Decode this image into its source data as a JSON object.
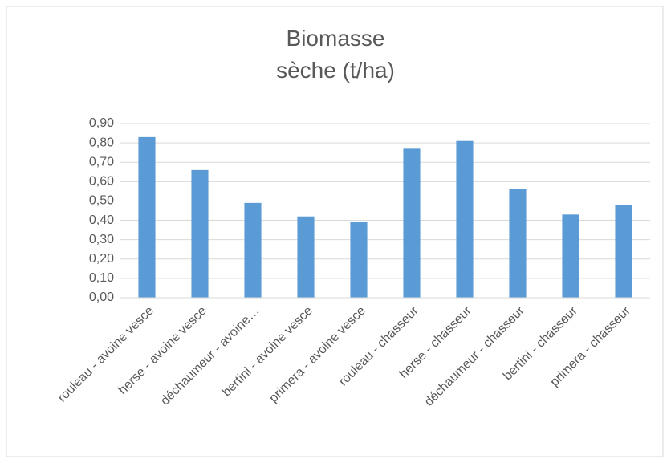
{
  "chart_data": {
    "type": "bar",
    "title": "Biomasse sèche (t/ha)",
    "categories": [
      "rouleau - avoine vesce",
      "herse - avoine vesce",
      "déchaumeur - avoine…",
      "bertini - avoine vesce",
      "primera - avoine vesce",
      "rouleau - chasseur",
      "herse - chasseur",
      "déchaumeur - chasseur",
      "bertini - chasseur",
      "primera - chasseur"
    ],
    "values": [
      0.83,
      0.66,
      0.49,
      0.42,
      0.39,
      0.77,
      0.81,
      0.56,
      0.43,
      0.48
    ],
    "color": "#5b9bd5",
    "ylim": [
      0,
      0.9
    ],
    "yticks": [
      {
        "value": 0,
        "label": "0,00"
      },
      {
        "value": 0.1,
        "label": "0,10"
      },
      {
        "value": 0.2,
        "label": "0,20"
      },
      {
        "value": 0.3,
        "label": "0,30"
      },
      {
        "value": 0.4,
        "label": "0,40"
      },
      {
        "value": 0.5,
        "label": "0,50"
      },
      {
        "value": 0.6,
        "label": "0,60"
      },
      {
        "value": 0.7,
        "label": "0,70"
      },
      {
        "value": 0.8,
        "label": "0,80"
      },
      {
        "value": 0.9,
        "label": "0,90"
      }
    ],
    "grid": true
  }
}
